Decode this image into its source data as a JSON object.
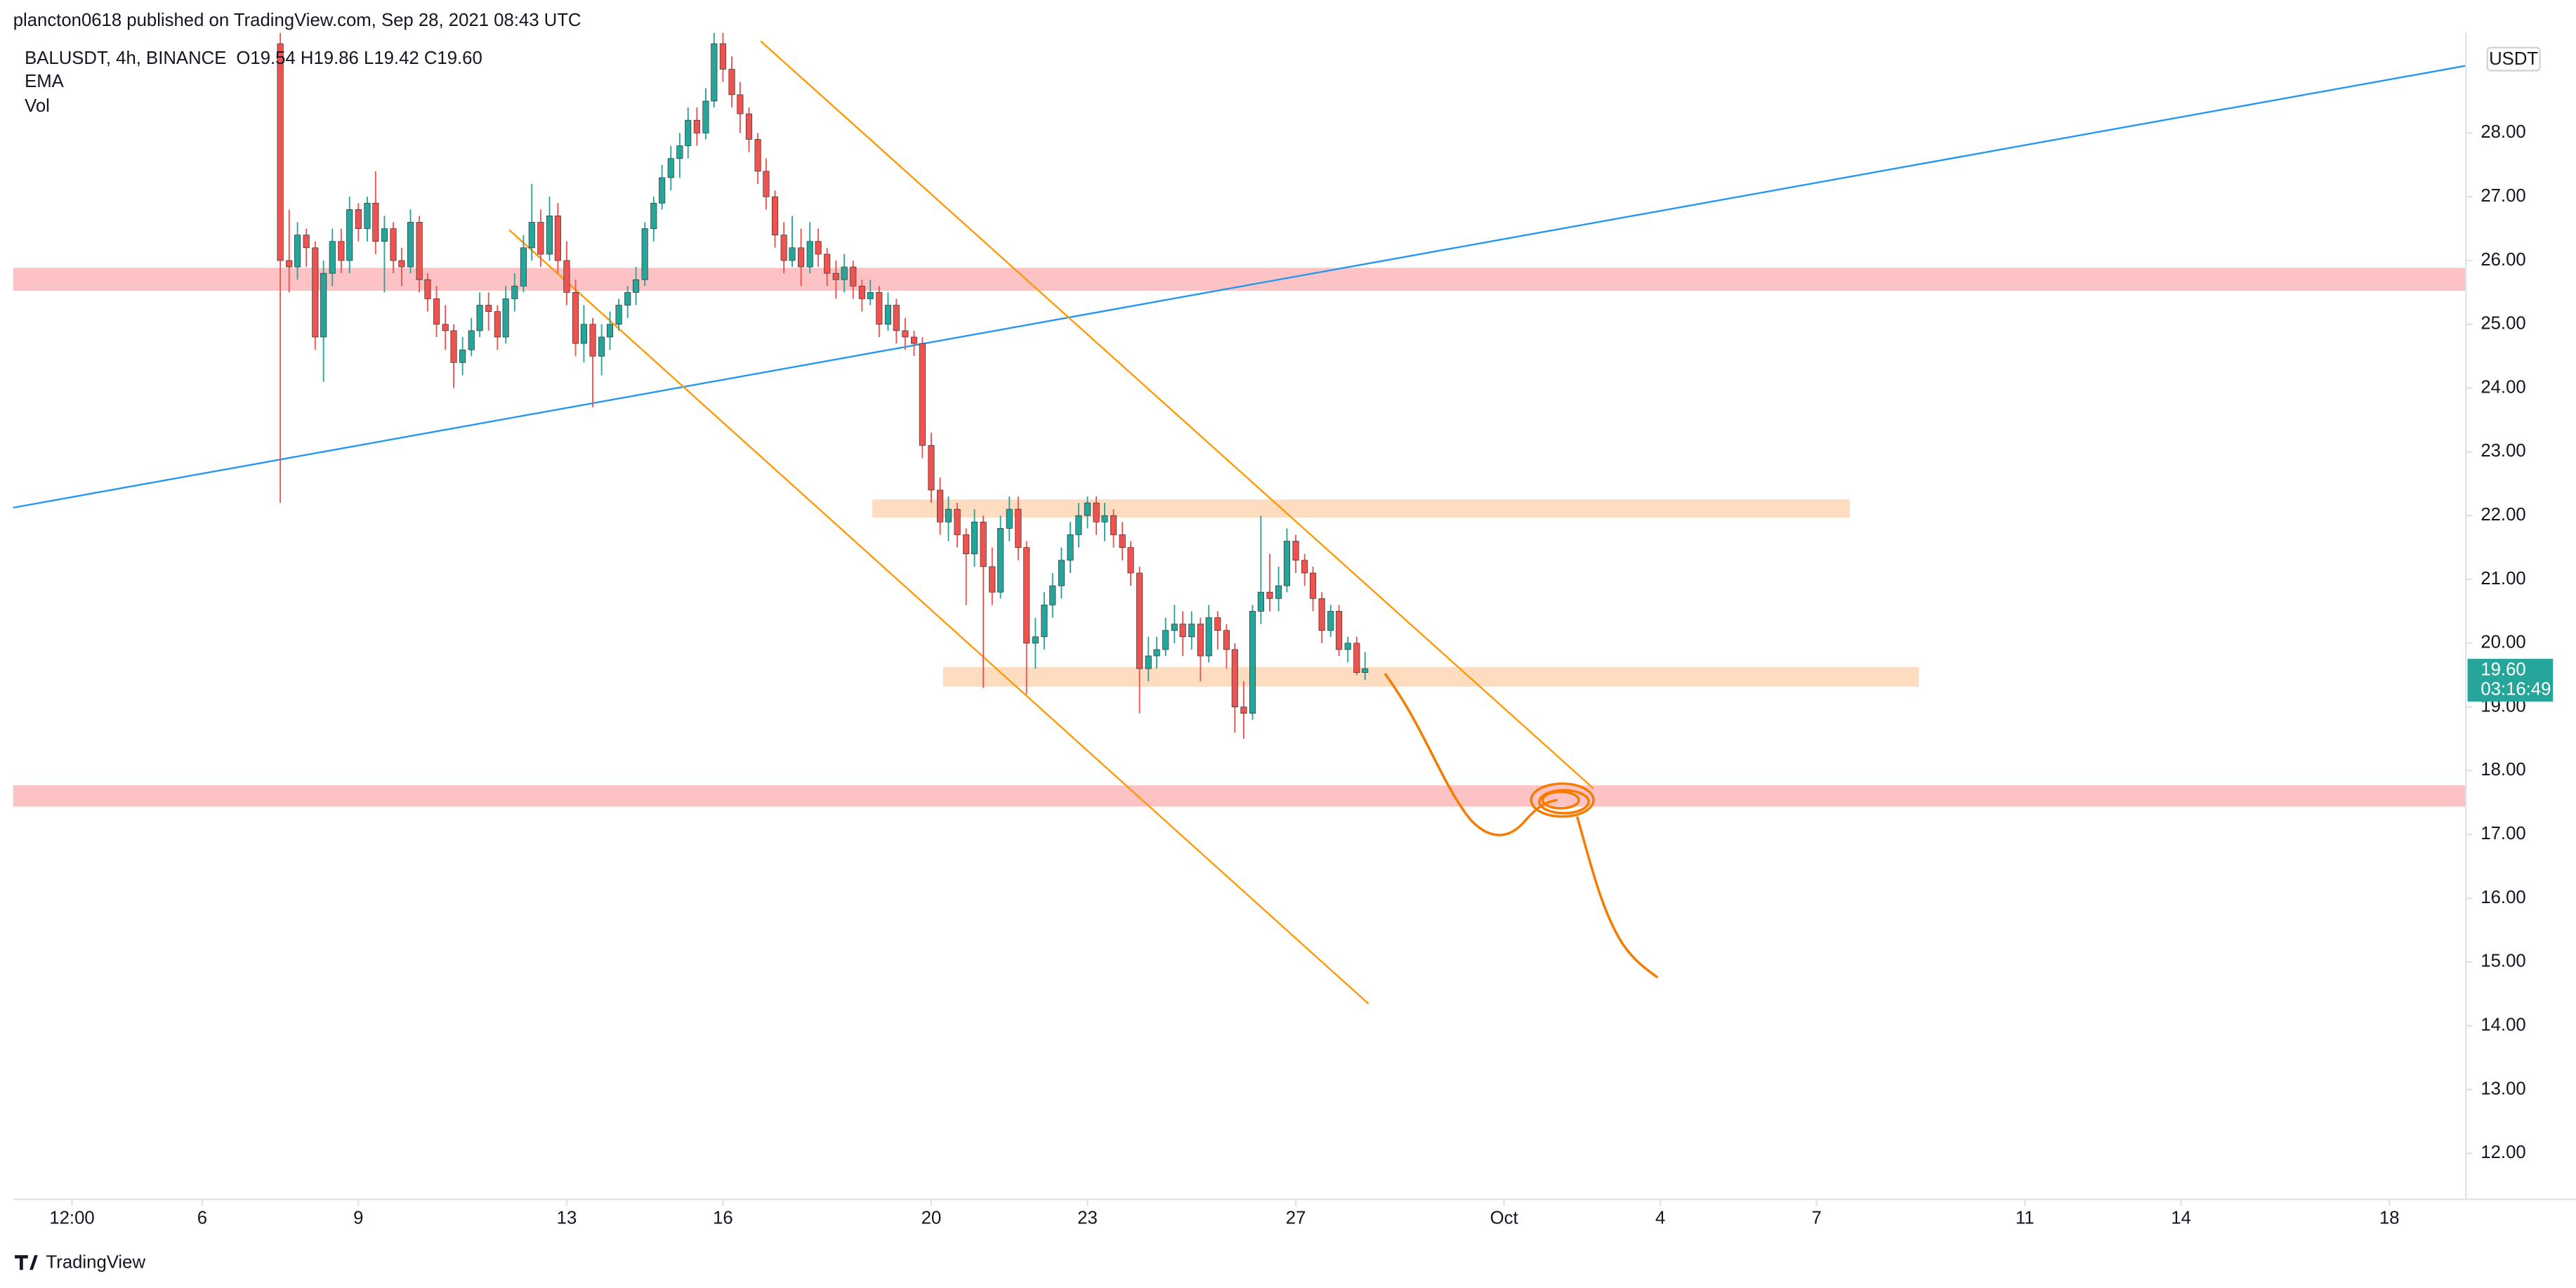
{
  "chart_data": {
    "type": "candlestick",
    "header": "plancton0618 published on TradingView.com, Sep 28, 2021 08:43 UTC",
    "symbol": "BALUSDT, 4h, BINANCE",
    "ohlc": "O19.54 H19.86 L19.42 C19.60",
    "indicators": [
      "EMA",
      "Vol"
    ],
    "currency": "USDT",
    "brand": "TradingView",
    "up_color": "#26a69a",
    "down_color": "#ef5350",
    "grid": false,
    "xlim": [
      2.37,
      49.47
    ],
    "ylim": [
      11.28,
      29.57
    ],
    "yticks": [
      {
        "value": 12,
        "label": "12.00"
      },
      {
        "value": 13,
        "label": "13.00"
      },
      {
        "value": 14,
        "label": "14.00"
      },
      {
        "value": 15,
        "label": "15.00"
      },
      {
        "value": 16,
        "label": "16.00"
      },
      {
        "value": 17,
        "label": "17.00"
      },
      {
        "value": 18,
        "label": "18.00"
      },
      {
        "value": 19,
        "label": "19.00"
      },
      {
        "value": 20,
        "label": "20.00"
      },
      {
        "value": 21,
        "label": "21.00"
      },
      {
        "value": 22,
        "label": "22.00"
      },
      {
        "value": 23,
        "label": "23.00"
      },
      {
        "value": 24,
        "label": "24.00"
      },
      {
        "value": 25,
        "label": "25.00"
      },
      {
        "value": 26,
        "label": "26.00"
      },
      {
        "value": 27,
        "label": "27.00"
      },
      {
        "value": 28,
        "label": "28.00"
      }
    ],
    "xticks": [
      {
        "value": 3.5,
        "label": "12:00"
      },
      6,
      9,
      13,
      16,
      20,
      23,
      27,
      {
        "value": 31,
        "label": "Oct"
      },
      {
        "value": 34,
        "label": "4"
      },
      {
        "value": 37,
        "label": "7"
      },
      {
        "value": 41,
        "label": "11"
      },
      {
        "value": 44,
        "label": "14"
      },
      {
        "value": 48,
        "label": "18"
      }
    ],
    "last_price": {
      "value": 19.6,
      "label": "19.60"
    },
    "countdown": "03:16:49",
    "x": [
      7.5,
      7.67,
      7.83,
      8,
      8.17,
      8.33,
      8.5,
      8.67,
      8.83,
      9,
      9.17,
      9.33,
      9.5,
      9.67,
      9.83,
      10,
      10.17,
      10.33,
      10.5,
      10.67,
      10.83,
      11,
      11.17,
      11.33,
      11.5,
      11.67,
      11.83,
      12,
      12.17,
      12.33,
      12.5,
      12.67,
      12.83,
      13,
      13.17,
      13.33,
      13.5,
      13.67,
      13.83,
      14,
      14.17,
      14.33,
      14.5,
      14.67,
      14.83,
      15,
      15.17,
      15.33,
      15.5,
      15.67,
      15.83,
      16,
      16.17,
      16.33,
      16.5,
      16.67,
      16.83,
      17,
      17.17,
      17.33,
      17.5,
      17.67,
      17.83,
      18,
      18.17,
      18.33,
      18.5,
      18.67,
      18.83,
      19,
      19.17,
      19.33,
      19.5,
      19.67,
      19.83,
      20,
      20.17,
      20.33,
      20.5,
      20.67,
      20.83,
      21,
      21.17,
      21.33,
      21.5,
      21.67,
      21.83,
      22,
      22.17,
      22.33,
      22.5,
      22.67,
      22.83,
      23,
      23.17,
      23.33,
      23.5,
      23.67,
      23.83,
      24,
      24.17,
      24.33,
      24.5,
      24.67,
      24.83,
      25,
      25.17,
      25.33,
      25.5,
      25.67,
      25.83,
      26,
      26.17,
      26.33,
      26.5,
      26.67,
      26.83,
      27,
      27.17,
      27.33,
      27.5,
      27.67,
      27.83,
      28,
      28.17,
      28.33
    ],
    "candles": [
      [
        29.4,
        29.6,
        22.2,
        26.0
      ],
      [
        26.0,
        26.8,
        25.5,
        25.9
      ],
      [
        25.9,
        26.6,
        25.7,
        26.4
      ],
      [
        26.4,
        26.5,
        25.9,
        26.2
      ],
      [
        26.2,
        26.3,
        24.6,
        24.8
      ],
      [
        24.8,
        26.0,
        24.1,
        25.8
      ],
      [
        25.8,
        26.5,
        25.6,
        26.3
      ],
      [
        26.3,
        26.5,
        25.8,
        26.0
      ],
      [
        26.0,
        27.0,
        25.8,
        26.8
      ],
      [
        26.8,
        26.9,
        26.3,
        26.5
      ],
      [
        26.5,
        27.0,
        26.3,
        26.9
      ],
      [
        26.9,
        27.4,
        26.1,
        26.3
      ],
      [
        26.3,
        26.7,
        25.5,
        26.5
      ],
      [
        26.5,
        26.6,
        25.8,
        26.0
      ],
      [
        26.0,
        26.2,
        25.6,
        25.9
      ],
      [
        25.9,
        26.8,
        25.8,
        26.6
      ],
      [
        26.6,
        26.7,
        25.5,
        25.7
      ],
      [
        25.7,
        25.8,
        25.2,
        25.4
      ],
      [
        25.4,
        25.6,
        24.8,
        25.0
      ],
      [
        25.0,
        25.3,
        24.6,
        24.9
      ],
      [
        24.9,
        25.0,
        24.0,
        24.4
      ],
      [
        24.4,
        24.8,
        24.2,
        24.6
      ],
      [
        24.6,
        25.1,
        24.5,
        24.9
      ],
      [
        24.9,
        25.5,
        24.8,
        25.3
      ],
      [
        25.3,
        25.5,
        24.9,
        25.2
      ],
      [
        25.2,
        25.3,
        24.6,
        24.8
      ],
      [
        24.8,
        25.6,
        24.7,
        25.4
      ],
      [
        25.4,
        25.8,
        25.2,
        25.6
      ],
      [
        25.6,
        26.4,
        25.5,
        26.2
      ],
      [
        26.2,
        27.2,
        26.0,
        26.6
      ],
      [
        26.6,
        26.8,
        25.9,
        26.1
      ],
      [
        26.1,
        27.0,
        26.0,
        26.7
      ],
      [
        26.7,
        26.9,
        25.8,
        26.0
      ],
      [
        26.0,
        26.3,
        25.3,
        25.5
      ],
      [
        25.5,
        25.7,
        24.5,
        24.7
      ],
      [
        24.7,
        25.3,
        24.4,
        25.0
      ],
      [
        25.0,
        25.1,
        23.7,
        24.5
      ],
      [
        24.5,
        25.0,
        24.2,
        24.8
      ],
      [
        24.8,
        25.2,
        24.6,
        25.0
      ],
      [
        25.0,
        25.4,
        24.9,
        25.3
      ],
      [
        25.3,
        25.6,
        25.1,
        25.5
      ],
      [
        25.5,
        25.9,
        25.3,
        25.7
      ],
      [
        25.7,
        26.6,
        25.6,
        26.5
      ],
      [
        26.5,
        27.0,
        26.3,
        26.9
      ],
      [
        26.9,
        27.5,
        26.8,
        27.3
      ],
      [
        27.3,
        27.8,
        27.1,
        27.6
      ],
      [
        27.6,
        28.0,
        27.3,
        27.8
      ],
      [
        27.8,
        28.4,
        27.6,
        28.2
      ],
      [
        28.2,
        28.4,
        27.8,
        28.0
      ],
      [
        28.0,
        28.7,
        27.9,
        28.5
      ],
      [
        28.5,
        29.6,
        28.4,
        29.4
      ],
      [
        29.4,
        29.6,
        28.8,
        29.0
      ],
      [
        29.0,
        29.2,
        28.4,
        28.6
      ],
      [
        28.6,
        28.8,
        28.0,
        28.3
      ],
      [
        28.3,
        28.4,
        27.7,
        27.9
      ],
      [
        27.9,
        28.0,
        27.2,
        27.4
      ],
      [
        27.4,
        27.6,
        26.8,
        27.0
      ],
      [
        27.0,
        27.1,
        26.2,
        26.4
      ],
      [
        26.4,
        26.6,
        25.8,
        26.0
      ],
      [
        26.0,
        26.7,
        25.9,
        26.2
      ],
      [
        26.2,
        26.5,
        25.6,
        25.9
      ],
      [
        25.9,
        26.6,
        25.8,
        26.3
      ],
      [
        26.3,
        26.5,
        25.9,
        26.1
      ],
      [
        26.1,
        26.2,
        25.6,
        25.8
      ],
      [
        25.8,
        26.0,
        25.4,
        25.7
      ],
      [
        25.7,
        26.1,
        25.5,
        25.9
      ],
      [
        25.9,
        26.0,
        25.4,
        25.6
      ],
      [
        25.6,
        25.7,
        25.2,
        25.4
      ],
      [
        25.4,
        25.7,
        25.3,
        25.5
      ],
      [
        25.5,
        25.6,
        24.8,
        25.0
      ],
      [
        25.0,
        25.5,
        24.9,
        25.3
      ],
      [
        25.3,
        25.4,
        24.7,
        24.9
      ],
      [
        24.9,
        25.1,
        24.6,
        24.8
      ],
      [
        24.8,
        24.9,
        24.5,
        24.7
      ],
      [
        24.7,
        24.8,
        22.9,
        23.1
      ],
      [
        23.1,
        23.3,
        22.2,
        22.4
      ],
      [
        22.4,
        22.6,
        21.7,
        21.9
      ],
      [
        21.9,
        22.3,
        21.6,
        22.1
      ],
      [
        22.1,
        22.2,
        21.5,
        21.7
      ],
      [
        21.7,
        21.8,
        20.6,
        21.4
      ],
      [
        21.4,
        22.1,
        21.2,
        21.9
      ],
      [
        21.9,
        22.0,
        19.3,
        21.2
      ],
      [
        21.2,
        21.5,
        20.6,
        20.8
      ],
      [
        20.8,
        22.0,
        20.7,
        21.8
      ],
      [
        21.8,
        22.3,
        21.6,
        22.1
      ],
      [
        22.1,
        22.3,
        21.3,
        21.5
      ],
      [
        21.5,
        21.6,
        19.2,
        20.0
      ],
      [
        20.0,
        20.4,
        19.6,
        20.1
      ],
      [
        20.1,
        20.8,
        19.9,
        20.6
      ],
      [
        20.6,
        21.1,
        20.4,
        20.9
      ],
      [
        20.9,
        21.5,
        20.7,
        21.3
      ],
      [
        21.3,
        21.9,
        21.1,
        21.7
      ],
      [
        21.7,
        22.2,
        21.5,
        22.0
      ],
      [
        22.0,
        22.3,
        21.8,
        22.2
      ],
      [
        22.2,
        22.3,
        21.7,
        21.9
      ],
      [
        21.9,
        22.2,
        21.6,
        22.0
      ],
      [
        22.0,
        22.1,
        21.5,
        21.7
      ],
      [
        21.7,
        21.9,
        21.3,
        21.5
      ],
      [
        21.5,
        21.6,
        20.9,
        21.1
      ],
      [
        21.1,
        21.2,
        18.9,
        19.6
      ],
      [
        19.6,
        20.1,
        19.4,
        19.8
      ],
      [
        19.8,
        20.1,
        19.6,
        19.9
      ],
      [
        19.9,
        20.4,
        19.8,
        20.2
      ],
      [
        20.2,
        20.6,
        20.0,
        20.3
      ],
      [
        20.3,
        20.5,
        19.8,
        20.1
      ],
      [
        20.1,
        20.5,
        19.9,
        20.3
      ],
      [
        20.3,
        20.4,
        19.4,
        19.8
      ],
      [
        19.8,
        20.6,
        19.7,
        20.4
      ],
      [
        20.4,
        20.5,
        19.9,
        20.2
      ],
      [
        20.2,
        20.3,
        19.6,
        19.9
      ],
      [
        19.9,
        20.0,
        18.6,
        19.0
      ],
      [
        19.0,
        19.4,
        18.5,
        18.9
      ],
      [
        18.9,
        20.6,
        18.8,
        20.5
      ],
      [
        20.5,
        22.0,
        20.3,
        20.8
      ],
      [
        20.8,
        21.4,
        20.5,
        20.7
      ],
      [
        20.7,
        21.2,
        20.5,
        20.9
      ],
      [
        20.9,
        21.8,
        20.8,
        21.6
      ],
      [
        21.6,
        21.7,
        21.1,
        21.3
      ],
      [
        21.3,
        21.4,
        20.9,
        21.1
      ],
      [
        21.1,
        21.2,
        20.5,
        20.7
      ],
      [
        20.7,
        20.8,
        20.0,
        20.2
      ],
      [
        20.2,
        20.6,
        20.1,
        20.5
      ],
      [
        20.5,
        20.6,
        19.8,
        19.9
      ],
      [
        19.9,
        20.1,
        19.7,
        20.0
      ],
      [
        20.0,
        20.1,
        19.5,
        19.54
      ],
      [
        19.54,
        19.86,
        19.42,
        19.6
      ]
    ]
  }
}
